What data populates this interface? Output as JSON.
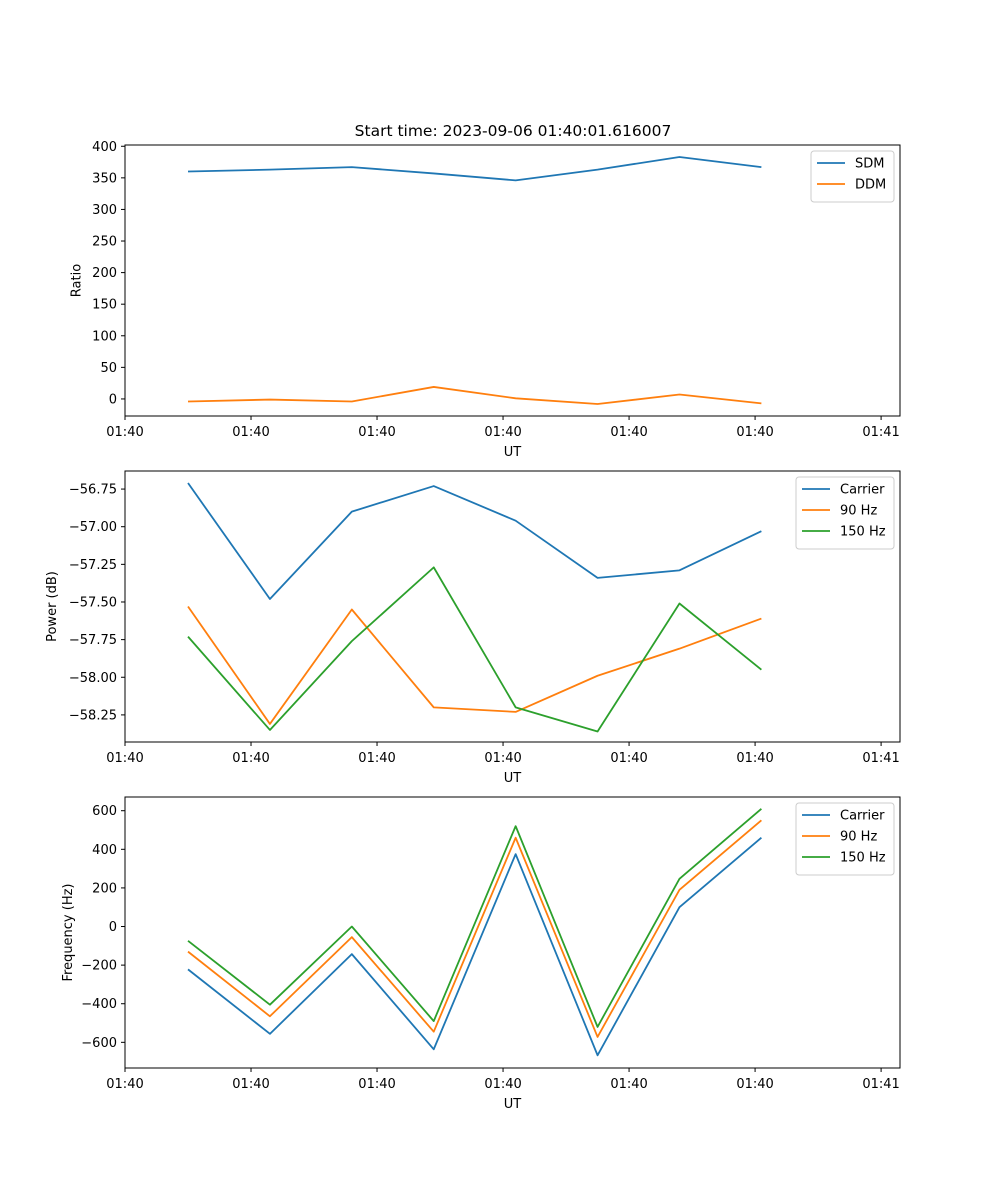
{
  "figure_title": "Start time: 2023-09-06 01:40:01.616007",
  "chart_data": [
    {
      "type": "line",
      "title": "Start time: 2023-09-06 01:40:01.616007",
      "xlabel": "UT",
      "ylabel": "Ratio",
      "xlim": [
        0,
        6.15
      ],
      "ylim": [
        -27,
        402
      ],
      "x": [
        0.5,
        1.15,
        1.8,
        2.45,
        3.1,
        3.75,
        4.4,
        5.05
      ],
      "x_ticks": [
        0,
        1,
        2,
        3,
        4,
        5,
        6
      ],
      "x_tick_labels": [
        "01:40",
        "01:40",
        "01:40",
        "01:40",
        "01:40",
        "01:40",
        "01:41"
      ],
      "y_ticks": [
        0,
        50,
        100,
        150,
        200,
        250,
        300,
        350,
        400
      ],
      "y_tick_labels": [
        "0",
        "50",
        "100",
        "150",
        "200",
        "250",
        "300",
        "350",
        "400"
      ],
      "legend_position": "top-right",
      "series": [
        {
          "name": "SDM",
          "color": "#1f77b4",
          "values": [
            360,
            363,
            367,
            357,
            346,
            363,
            383,
            367
          ]
        },
        {
          "name": "DDM",
          "color": "#ff7f0e",
          "values": [
            -4,
            -1,
            -4,
            19,
            1,
            -8,
            7,
            -7
          ]
        }
      ]
    },
    {
      "type": "line",
      "title": "",
      "xlabel": "UT",
      "ylabel": "Power (dB)",
      "xlim": [
        0,
        6.15
      ],
      "ylim": [
        -58.43,
        -56.63
      ],
      "x": [
        0.5,
        1.15,
        1.8,
        2.45,
        3.1,
        3.75,
        4.4,
        5.05
      ],
      "x_ticks": [
        0,
        1,
        2,
        3,
        4,
        5,
        6
      ],
      "x_tick_labels": [
        "01:40",
        "01:40",
        "01:40",
        "01:40",
        "01:40",
        "01:40",
        "01:41"
      ],
      "y_ticks": [
        -58.25,
        -58.0,
        -57.75,
        -57.5,
        -57.25,
        -57.0,
        -56.75
      ],
      "y_tick_labels": [
        "−58.25",
        "−58.00",
        "−57.75",
        "−57.50",
        "−57.25",
        "−57.00",
        "−56.75"
      ],
      "legend_position": "top-right",
      "series": [
        {
          "name": "Carrier",
          "color": "#1f77b4",
          "values": [
            -56.71,
            -57.48,
            -56.9,
            -56.73,
            -56.96,
            -57.34,
            -57.29,
            -57.03
          ]
        },
        {
          "name": "90 Hz",
          "color": "#ff7f0e",
          "values": [
            -57.53,
            -58.31,
            -57.55,
            -58.2,
            -58.23,
            -57.99,
            -57.81,
            -57.61
          ]
        },
        {
          "name": "150 Hz",
          "color": "#2ca02c",
          "values": [
            -57.73,
            -58.35,
            -57.76,
            -57.27,
            -58.2,
            -58.36,
            -57.51,
            -57.95
          ]
        }
      ]
    },
    {
      "type": "line",
      "title": "",
      "xlabel": "UT",
      "ylabel": "Frequency (Hz)",
      "xlim": [
        0,
        6.15
      ],
      "ylim": [
        -733,
        671
      ],
      "x": [
        0.5,
        1.15,
        1.8,
        2.45,
        3.1,
        3.75,
        4.4,
        5.05
      ],
      "x_ticks": [
        0,
        1,
        2,
        3,
        4,
        5,
        6
      ],
      "x_tick_labels": [
        "01:40",
        "01:40",
        "01:40",
        "01:40",
        "01:40",
        "01:40",
        "01:41"
      ],
      "y_ticks": [
        -600,
        -400,
        -200,
        0,
        200,
        400,
        600
      ],
      "y_tick_labels": [
        "−600",
        "−400",
        "−200",
        "0",
        "200",
        "400",
        "600"
      ],
      "legend_position": "top-right",
      "series": [
        {
          "name": "Carrier",
          "color": "#1f77b4",
          "values": [
            -222,
            -556,
            -143,
            -636,
            375,
            -667,
            100,
            460
          ]
        },
        {
          "name": "90 Hz",
          "color": "#ff7f0e",
          "values": [
            -130,
            -465,
            -55,
            -545,
            460,
            -572,
            190,
            550
          ]
        },
        {
          "name": "150 Hz",
          "color": "#2ca02c",
          "values": [
            -74,
            -405,
            0,
            -490,
            520,
            -520,
            247,
            610
          ]
        }
      ]
    }
  ]
}
